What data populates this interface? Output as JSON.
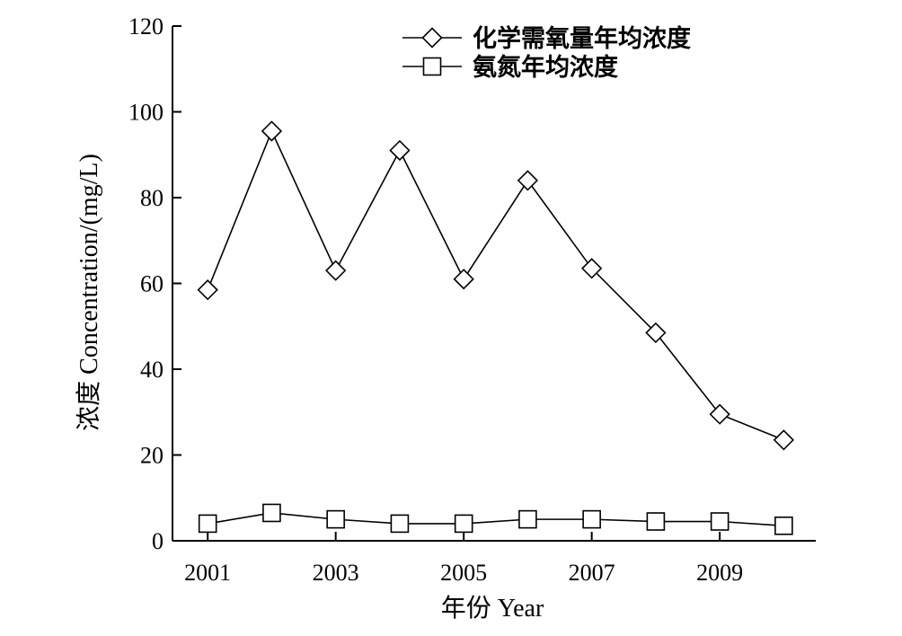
{
  "chart_data": {
    "type": "line",
    "title": "",
    "xlabel": "年份 Year",
    "ylabel": "浓度 Concentration/(mg/L)",
    "x": [
      2001,
      2002,
      2003,
      2004,
      2005,
      2006,
      2007,
      2008,
      2009,
      2010
    ],
    "x_tick_labels": [
      "2001",
      "2003",
      "2005",
      "2007",
      "2009"
    ],
    "x_tick_values": [
      2001,
      2003,
      2005,
      2007,
      2009
    ],
    "xlim": [
      2000.45,
      2010.5
    ],
    "ylim": [
      0,
      120
    ],
    "y_ticks": [
      0,
      20,
      40,
      60,
      80,
      100,
      120
    ],
    "grid": false,
    "legend_position": "top-right",
    "series": [
      {
        "name": "化学需氧量年均浓度",
        "marker": "diamond",
        "color": "#000000",
        "values": [
          58.5,
          95.5,
          63,
          91,
          61,
          84,
          63.5,
          48.5,
          29.5,
          23.5
        ]
      },
      {
        "name": "氨氮年均浓度",
        "marker": "square",
        "color": "#000000",
        "values": [
          4,
          6.5,
          5,
          4,
          4,
          5,
          5,
          4.5,
          4.5,
          3.5
        ]
      }
    ]
  }
}
